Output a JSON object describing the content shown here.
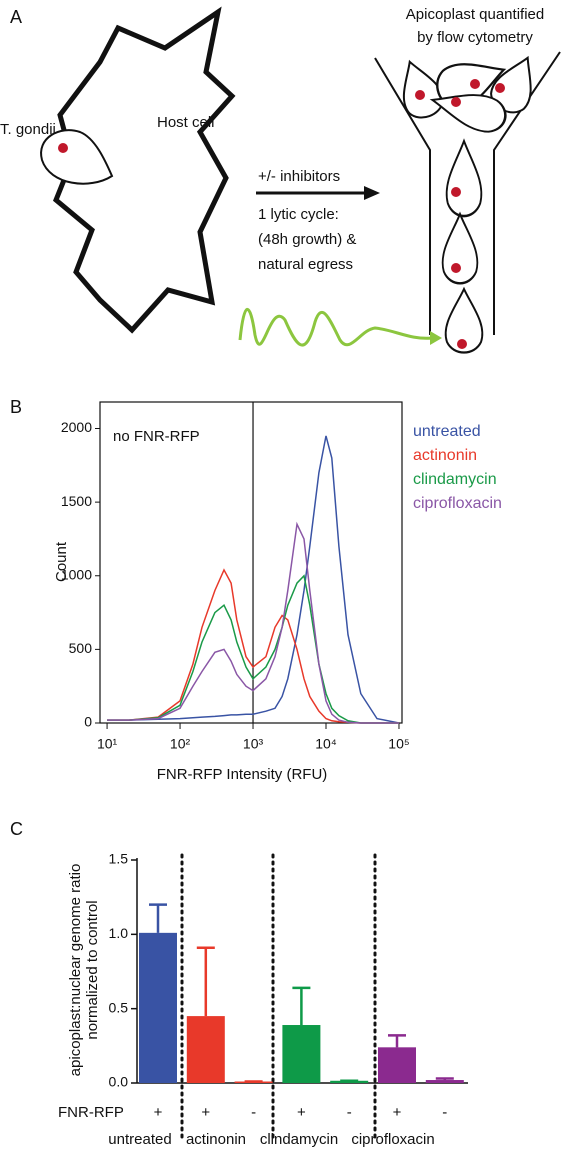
{
  "panels": {
    "a": "A",
    "b": "B",
    "c": "C"
  },
  "diagram": {
    "title_lines": [
      "Apicoplast quantified",
      "by flow cytometry"
    ],
    "parasite": "T. gondii",
    "host": "Host cell",
    "treatment": "+/- inhibitors",
    "cycle_lines": [
      "1 lytic cycle:",
      "(48h growth) &",
      "natural egress"
    ]
  },
  "chart_data": [
    {
      "type": "line",
      "xlabel": "FNR-RFP Intensity (RFU)",
      "ylabel": "Count",
      "annotation": "no FNR-RFP",
      "threshold": 1000,
      "log_x": true,
      "xlim": [
        8,
        110000
      ],
      "ylim": [
        0,
        2180
      ],
      "xticks": [
        {
          "value": 10,
          "label": "10¹"
        },
        {
          "value": 100,
          "label": "10²"
        },
        {
          "value": 1000,
          "label": "10³"
        },
        {
          "value": 10000,
          "label": "10⁴"
        },
        {
          "value": 100000,
          "label": "10⁵"
        }
      ],
      "yticks": [
        0,
        500,
        1000,
        1500,
        2000
      ],
      "x": [
        10,
        20,
        50,
        100,
        150,
        200,
        300,
        400,
        500,
        600,
        800,
        1000,
        1500,
        2000,
        2500,
        3000,
        4000,
        5000,
        6000,
        8000,
        10000,
        12000,
        15000,
        20000,
        30000,
        50000,
        100000
      ],
      "series": [
        {
          "name": "untreated",
          "color": "#3953a4",
          "values": [
            20,
            20,
            25,
            30,
            35,
            40,
            45,
            50,
            55,
            55,
            60,
            60,
            80,
            100,
            180,
            300,
            600,
            900,
            1200,
            1700,
            1950,
            1800,
            1200,
            600,
            200,
            30,
            0
          ]
        },
        {
          "name": "actinonin",
          "color": "#e8392a",
          "values": [
            20,
            20,
            40,
            150,
            400,
            650,
            900,
            1040,
            950,
            700,
            450,
            380,
            450,
            650,
            730,
            700,
            500,
            300,
            180,
            80,
            30,
            15,
            8,
            5,
            0,
            0,
            0
          ]
        },
        {
          "name": "clindamycin",
          "color": "#1a9a48",
          "values": [
            20,
            20,
            35,
            120,
            350,
            550,
            750,
            800,
            700,
            550,
            380,
            300,
            380,
            500,
            650,
            800,
            950,
            1000,
            800,
            400,
            200,
            100,
            50,
            15,
            0,
            0,
            0
          ]
        },
        {
          "name": "ciprofloxacin",
          "color": "#8a57a6",
          "values": [
            20,
            20,
            30,
            100,
            250,
            350,
            480,
            500,
            420,
            330,
            250,
            220,
            300,
            450,
            650,
            900,
            1350,
            1250,
            900,
            400,
            150,
            60,
            20,
            5,
            0,
            0,
            0
          ]
        }
      ]
    },
    {
      "type": "bar",
      "ylabel_lines": [
        "apicoplast:nuclear genome ratio",
        "normalized to control"
      ],
      "row_label": "FNR-RFP",
      "groups": [
        "untreated",
        "actinonin",
        "clindamycin",
        "ciprofloxacin"
      ],
      "categories": [
        "+",
        "+",
        "-",
        "+",
        "-",
        "+",
        "-"
      ],
      "values": [
        1.01,
        0.45,
        0.01,
        0.39,
        0.015,
        0.24,
        0.02
      ],
      "errors": [
        0.19,
        0.46,
        0,
        0.25,
        0,
        0.08,
        0.01
      ],
      "colors": [
        "#3953a4",
        "#e8392a",
        "#e8392a",
        "#0e9a48",
        "#0e9a48",
        "#8b2a8f",
        "#8b2a8f"
      ],
      "ylim": [
        0,
        1.5
      ],
      "yticks": [
        {
          "value": 0,
          "label": "0.0"
        },
        0.5,
        {
          "value": 1,
          "label": "1.0"
        },
        1.5
      ]
    }
  ]
}
